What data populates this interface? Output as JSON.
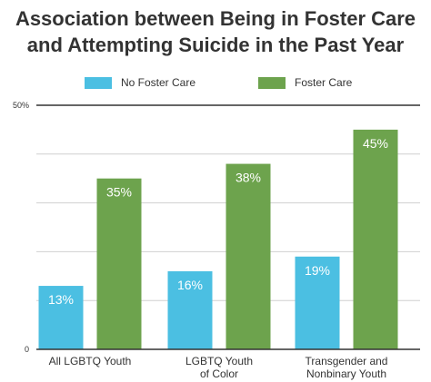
{
  "chart_data": {
    "type": "bar",
    "title": [
      "Association between Being in Foster Care",
      "and Attempting Suicide in the Past Year"
    ],
    "categories": [
      [
        "All LGBTQ Youth"
      ],
      [
        "LGBTQ Youth",
        "of Color"
      ],
      [
        "Transgender and",
        "Nonbinary Youth"
      ]
    ],
    "series": [
      {
        "name": "No Foster Care",
        "color": "#4bbfe2",
        "values": [
          13,
          16,
          19
        ],
        "labels": [
          "13%",
          "16%",
          "19%"
        ]
      },
      {
        "name": "Foster Care",
        "color": "#6da34d",
        "values": [
          35,
          38,
          45
        ],
        "labels": [
          "35%",
          "38%",
          "45%"
        ]
      }
    ],
    "ylim": [
      0,
      50
    ],
    "yticks": [
      {
        "value": 0,
        "label": "0"
      },
      {
        "value": 50,
        "label": "50%"
      }
    ],
    "gridlines": [
      10,
      20,
      30,
      40
    ],
    "legend_position": "top",
    "grid": true
  }
}
